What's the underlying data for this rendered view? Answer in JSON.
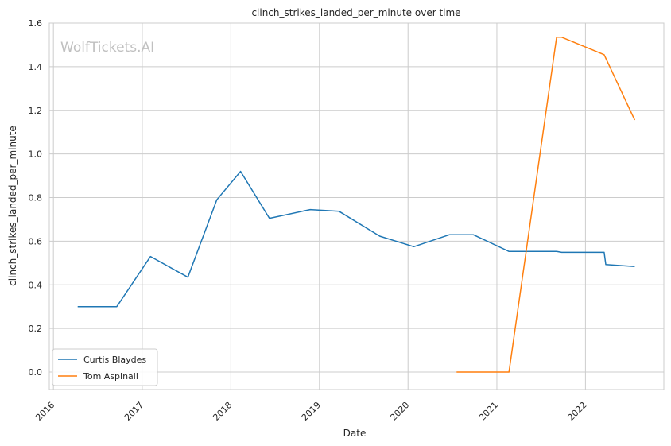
{
  "chart_data": {
    "type": "line",
    "title": "clinch_strikes_landed_per_minute over time",
    "xlabel": "Date",
    "ylabel": "clinch_strikes_landed_per_minute",
    "watermark": "WolfTickets.AI",
    "xlim": [
      "2015-12-15",
      "2022-11-20"
    ],
    "ylim": [
      -0.08,
      1.6
    ],
    "x_ticks": [
      "2016",
      "2017",
      "2018",
      "2019",
      "2020",
      "2021",
      "2022"
    ],
    "y_ticks": [
      "0.0",
      "0.2",
      "0.4",
      "0.6",
      "0.8",
      "1.0",
      "1.2",
      "1.4",
      "1.6"
    ],
    "grid": true,
    "legend_position": "lower-left",
    "series": [
      {
        "name": "Curtis Blaydes",
        "color": "#1f77b4",
        "points": [
          {
            "x": "2016-04-10",
            "y": 0.3
          },
          {
            "x": "2016-09-18",
            "y": 0.3
          },
          {
            "x": "2017-02-04",
            "y": 0.53
          },
          {
            "x": "2017-07-08",
            "y": 0.435
          },
          {
            "x": "2017-11-04",
            "y": 0.79
          },
          {
            "x": "2018-02-10",
            "y": 0.92
          },
          {
            "x": "2018-06-09",
            "y": 0.705
          },
          {
            "x": "2018-11-24",
            "y": 0.745
          },
          {
            "x": "2019-03-23",
            "y": 0.737
          },
          {
            "x": "2019-09-07",
            "y": 0.623
          },
          {
            "x": "2020-01-25",
            "y": 0.575
          },
          {
            "x": "2020-06-20",
            "y": 0.63
          },
          {
            "x": "2020-09-26",
            "y": 0.63
          },
          {
            "x": "2021-02-20",
            "y": 0.553
          },
          {
            "x": "2021-09-04",
            "y": 0.553
          },
          {
            "x": "2021-09-25",
            "y": 0.549
          },
          {
            "x": "2022-03-19",
            "y": 0.549
          },
          {
            "x": "2022-03-26",
            "y": 0.493
          },
          {
            "x": "2022-07-23",
            "y": 0.484
          }
        ]
      },
      {
        "name": "Tom Aspinall",
        "color": "#ff7f0e",
        "points": [
          {
            "x": "2020-07-19",
            "y": 0.0
          },
          {
            "x": "2021-02-20",
            "y": 0.0
          },
          {
            "x": "2021-09-04",
            "y": 1.535
          },
          {
            "x": "2021-09-25",
            "y": 1.535
          },
          {
            "x": "2022-03-19",
            "y": 1.455
          },
          {
            "x": "2022-07-23",
            "y": 1.155
          }
        ]
      }
    ]
  }
}
